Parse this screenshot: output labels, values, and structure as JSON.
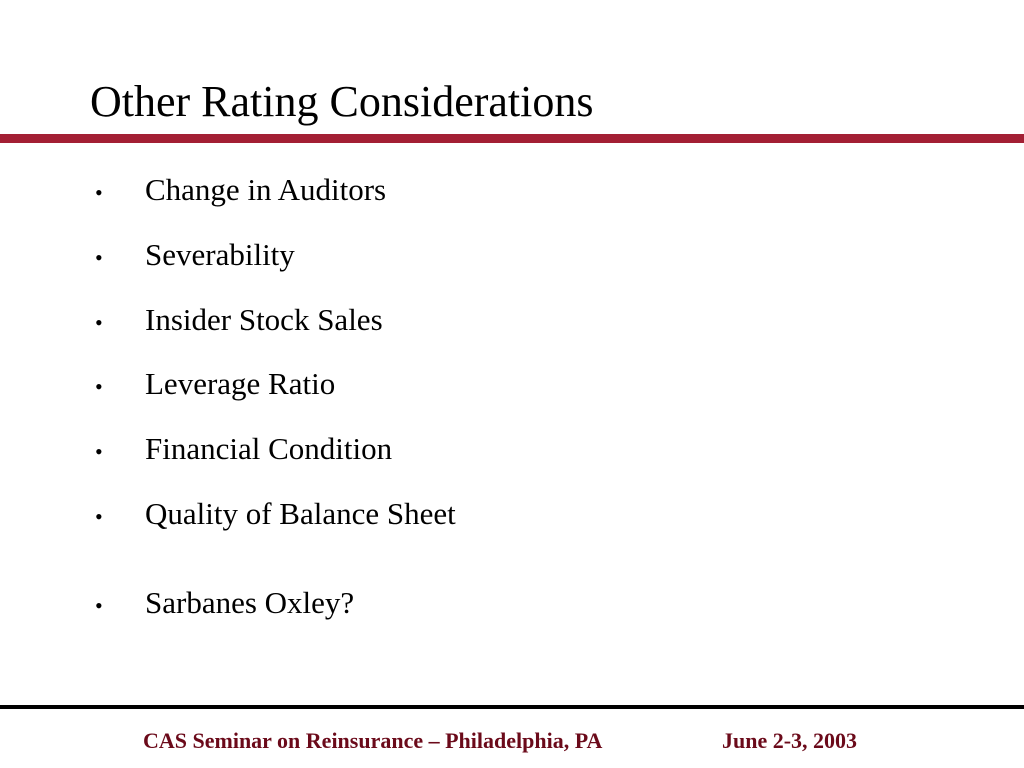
{
  "title": "Other Rating Considerations",
  "bullets": [
    "Change in Auditors",
    "Severability",
    "Insider Stock Sales",
    "Leverage Ratio",
    "Financial Condition",
    "Quality of Balance Sheet",
    "Sarbanes Oxley?"
  ],
  "footer": {
    "event": "CAS Seminar on Reinsurance – Philadelphia, PA",
    "date": "June 2-3, 2003"
  }
}
